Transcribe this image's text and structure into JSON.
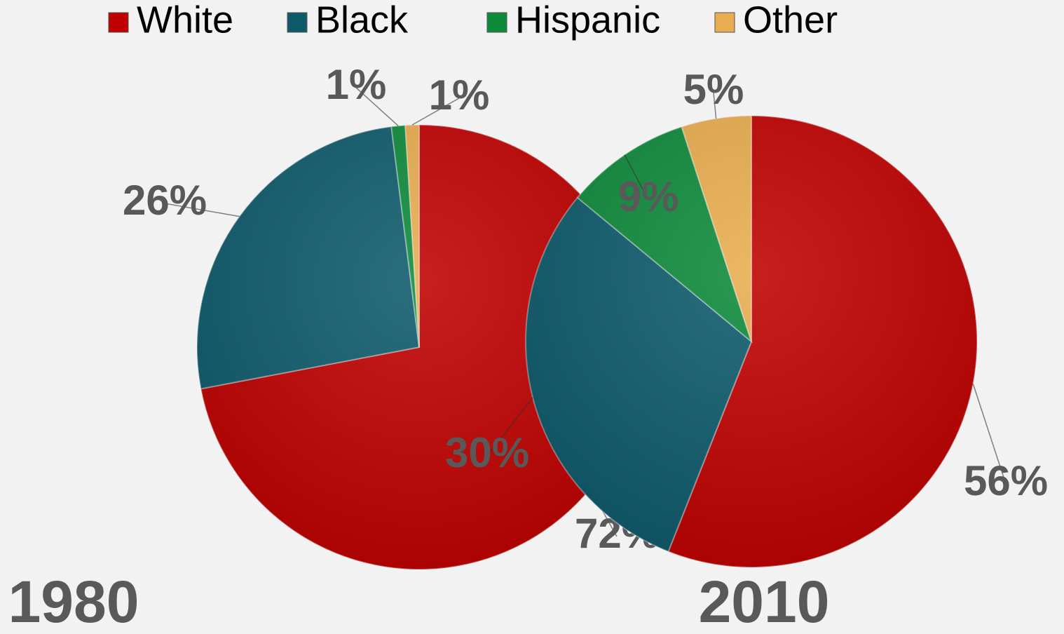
{
  "chart_data": [
    {
      "type": "pie",
      "title": "1980",
      "categories": [
        "White",
        "Black",
        "Hispanic",
        "Other"
      ],
      "values": [
        72,
        26,
        1,
        1
      ],
      "value_labels": [
        "72%",
        "26%",
        "1%",
        "1%"
      ],
      "colors": [
        "#c00000",
        "#0e5a6b",
        "#0d8a3a",
        "#e8ad50"
      ],
      "legend": "top"
    },
    {
      "type": "pie",
      "title": "2010",
      "categories": [
        "White",
        "Black",
        "Hispanic",
        "Other"
      ],
      "values": [
        56,
        30,
        9,
        5
      ],
      "value_labels": [
        "56%",
        "30%",
        "9%",
        "5%"
      ],
      "colors": [
        "#c00000",
        "#0e5a6b",
        "#0d8a3a",
        "#e8ad50"
      ]
    }
  ]
}
